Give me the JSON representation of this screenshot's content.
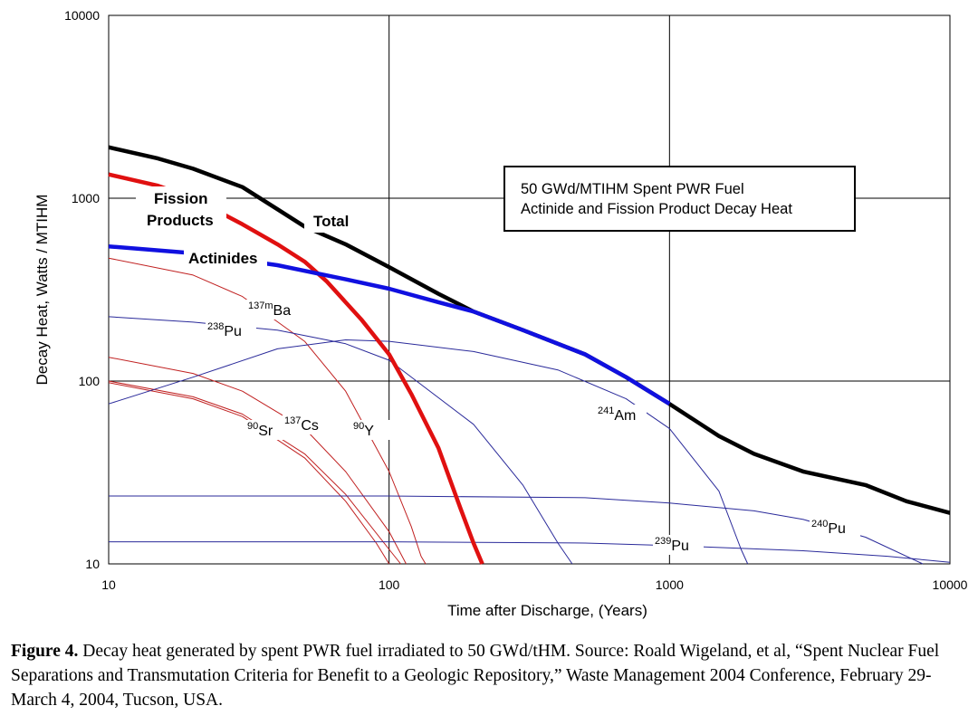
{
  "chart_data": {
    "type": "line",
    "log_x": true,
    "log_y": true,
    "xlim": [
      10,
      10000
    ],
    "ylim": [
      10,
      10000
    ],
    "x_ticks": [
      "10",
      "100",
      "1000",
      "10000"
    ],
    "y_ticks": [
      "10",
      "100",
      "1000",
      "10000"
    ],
    "xlabel": "Time after Discharge, (Years)",
    "ylabel": "Decay Heat, Watts / MTIHM",
    "grid": true,
    "annotation_box": {
      "line1": "50 GWd/MTIHM Spent PWR Fuel",
      "line2": "Actinide and Fission Product Decay Heat"
    },
    "series": [
      {
        "name": "Total",
        "label": "Total",
        "color": "#000000",
        "width": 4.5,
        "points": [
          [
            10,
            1900
          ],
          [
            15,
            1650
          ],
          [
            20,
            1450
          ],
          [
            30,
            1150
          ],
          [
            40,
            870
          ],
          [
            50,
            700
          ],
          [
            70,
            560
          ],
          [
            100,
            420
          ],
          [
            150,
            300
          ],
          [
            200,
            240
          ],
          [
            300,
            190
          ],
          [
            500,
            140
          ],
          [
            700,
            105
          ],
          [
            1000,
            75
          ],
          [
            1500,
            50
          ],
          [
            2000,
            40
          ],
          [
            3000,
            32
          ],
          [
            5000,
            27
          ],
          [
            7000,
            22
          ],
          [
            10000,
            19
          ]
        ]
      },
      {
        "name": "Fission Products",
        "label_line1": "Fission",
        "label_line2": "Products",
        "color": "#e01010",
        "width": 4.5,
        "points": [
          [
            10,
            1350
          ],
          [
            15,
            1170
          ],
          [
            20,
            1000
          ],
          [
            30,
            720
          ],
          [
            40,
            560
          ],
          [
            50,
            450
          ],
          [
            60,
            350
          ],
          [
            80,
            215
          ],
          [
            100,
            140
          ],
          [
            120,
            85
          ],
          [
            150,
            43
          ],
          [
            180,
            20
          ],
          [
            200,
            13
          ],
          [
            215,
            10
          ]
        ]
      },
      {
        "name": "Actinides",
        "label": "Actinides",
        "color": "#1010e0",
        "width": 4.5,
        "points": [
          [
            10,
            545
          ],
          [
            20,
            500
          ],
          [
            40,
            430
          ],
          [
            70,
            360
          ],
          [
            100,
            320
          ],
          [
            150,
            270
          ],
          [
            200,
            240
          ],
          [
            300,
            190
          ],
          [
            500,
            140
          ],
          [
            700,
            105
          ],
          [
            1000,
            75
          ]
        ]
      },
      {
        "name": "137mBa",
        "label_sup": "137m",
        "label": "Ba",
        "color": "#c02020",
        "width": 1,
        "points": [
          [
            10,
            470
          ],
          [
            20,
            380
          ],
          [
            30,
            290
          ],
          [
            50,
            165
          ],
          [
            70,
            88
          ],
          [
            100,
            32
          ],
          [
            120,
            16
          ],
          [
            130,
            11
          ],
          [
            135,
            10
          ]
        ]
      },
      {
        "name": "238Pu",
        "label_sup": "238",
        "label": "Pu",
        "color": "#2a2a9a",
        "width": 1,
        "points": [
          [
            10,
            225
          ],
          [
            20,
            210
          ],
          [
            40,
            190
          ],
          [
            70,
            160
          ],
          [
            100,
            130
          ],
          [
            200,
            58
          ],
          [
            300,
            27
          ],
          [
            400,
            13
          ],
          [
            450,
            10
          ]
        ]
      },
      {
        "name": "90Sr",
        "label_sup": "90",
        "label": "Sr",
        "color": "#c02020",
        "width": 1,
        "points": [
          [
            10,
            98
          ],
          [
            20,
            80
          ],
          [
            30,
            64
          ],
          [
            50,
            38
          ],
          [
            70,
            22
          ],
          [
            90,
            13
          ],
          [
            100,
            10
          ]
        ]
      },
      {
        "name": "137Cs",
        "label_sup": "137",
        "label": "Cs",
        "color": "#c02020",
        "width": 1,
        "points": [
          [
            10,
            135
          ],
          [
            20,
            110
          ],
          [
            30,
            88
          ],
          [
            50,
            55
          ],
          [
            70,
            32
          ],
          [
            100,
            15
          ],
          [
            115,
            10
          ]
        ]
      },
      {
        "name": "90Y",
        "label_sup": "90",
        "label": "Y",
        "color": "#c02020",
        "width": 1,
        "points": [
          [
            10,
            100
          ],
          [
            20,
            82
          ],
          [
            30,
            66
          ],
          [
            50,
            40
          ],
          [
            70,
            24
          ],
          [
            100,
            12
          ],
          [
            110,
            10
          ]
        ]
      },
      {
        "name": "241Am",
        "label_sup": "241",
        "label": "Am",
        "color": "#2a2a9a",
        "width": 1,
        "points": [
          [
            10,
            75
          ],
          [
            20,
            105
          ],
          [
            40,
            150
          ],
          [
            70,
            168
          ],
          [
            100,
            165
          ],
          [
            200,
            145
          ],
          [
            400,
            115
          ],
          [
            700,
            80
          ],
          [
            1000,
            55
          ],
          [
            1500,
            25
          ],
          [
            1800,
            12
          ],
          [
            1900,
            10
          ]
        ]
      },
      {
        "name": "240Pu",
        "label_sup": "240",
        "label": "Pu",
        "color": "#2a2a9a",
        "width": 1,
        "points": [
          [
            10,
            23.5
          ],
          [
            100,
            23.5
          ],
          [
            500,
            23
          ],
          [
            1000,
            21.5
          ],
          [
            2000,
            19.5
          ],
          [
            3000,
            17.5
          ],
          [
            5000,
            14
          ],
          [
            8000,
            10
          ]
        ]
      },
      {
        "name": "239Pu",
        "label_sup": "239",
        "label": "Pu",
        "color": "#2a2a9a",
        "width": 1,
        "points": [
          [
            10,
            13.2
          ],
          [
            100,
            13.2
          ],
          [
            500,
            13
          ],
          [
            1000,
            12.6
          ],
          [
            3000,
            11.8
          ],
          [
            6000,
            11
          ],
          [
            10000,
            10.2
          ]
        ]
      }
    ]
  },
  "caption": {
    "label": "Figure 4.",
    "text": " Decay heat generated by spent PWR fuel irradiated to 50 GWd/tHM. Source: Roald Wigeland, et al, “Spent Nuclear Fuel Separations and Transmutation Criteria for Benefit to a Geologic Repository,” Waste Management 2004 Conference, February 29-March 4, 2004, Tucson, USA."
  }
}
